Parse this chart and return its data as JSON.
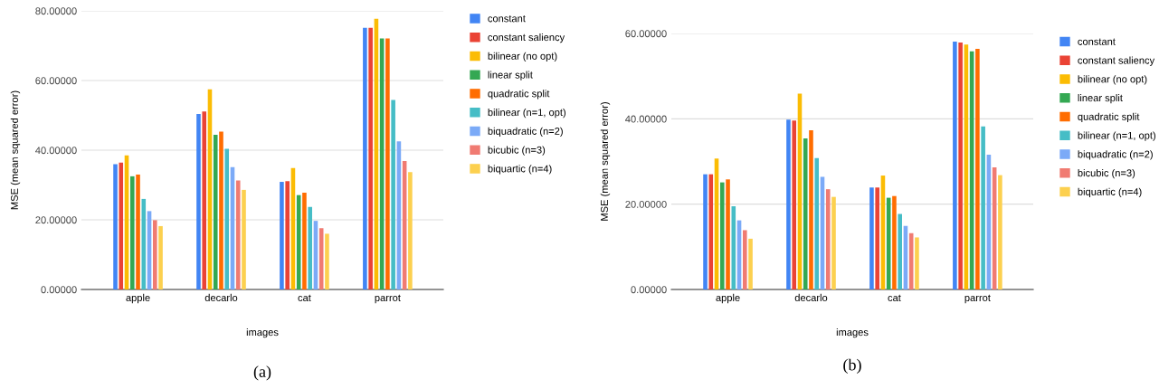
{
  "chart_data": [
    {
      "type": "bar",
      "xlabel": "images",
      "ylabel": "MSE (mean squared error)",
      "categories": [
        "apple",
        "decarlo",
        "cat",
        "parrot"
      ],
      "series": [
        {
          "name": "constant",
          "color": "#4285f4",
          "values": [
            36.0,
            50.4,
            30.9,
            75.1
          ]
        },
        {
          "name": "constant saliency",
          "color": "#ea4335",
          "values": [
            36.4,
            51.1,
            31.1,
            75.1
          ]
        },
        {
          "name": "bilinear (no opt)",
          "color": "#fbbc04",
          "values": [
            38.5,
            57.5,
            34.9,
            77.7
          ]
        },
        {
          "name": "linear split",
          "color": "#34a853",
          "values": [
            32.5,
            44.4,
            27.1,
            72.1
          ]
        },
        {
          "name": "quadratic split",
          "color": "#ff6d01",
          "values": [
            33.0,
            45.3,
            27.8,
            72.1
          ]
        },
        {
          "name": "bilinear (n=1, opt)",
          "color": "#46bdc6",
          "values": [
            26.0,
            40.4,
            23.7,
            54.4
          ]
        },
        {
          "name": "biquadratic (n=2)",
          "color": "#7baaf7",
          "values": [
            22.5,
            35.1,
            19.7,
            42.5
          ]
        },
        {
          "name": "bicubic (n=3)",
          "color": "#f07b72",
          "values": [
            19.9,
            31.3,
            17.6,
            36.9
          ]
        },
        {
          "name": "biquartic (n=4)",
          "color": "#fcd04f",
          "values": [
            18.2,
            28.6,
            16.0,
            33.7
          ]
        }
      ],
      "ylim": [
        0,
        80
      ],
      "yticks": [
        {
          "value": 0,
          "label": "0.00000"
        },
        {
          "value": 20,
          "label": "20.00000"
        },
        {
          "value": 40,
          "label": "40.00000"
        },
        {
          "value": 60,
          "label": "60.00000"
        },
        {
          "value": 80,
          "label": "80.00000"
        }
      ],
      "grid": "y",
      "legend": "right",
      "annotations": [
        "(a)"
      ]
    },
    {
      "type": "bar",
      "xlabel": "images",
      "ylabel": "MSE (mean squared error)",
      "categories": [
        "apple",
        "decarlo",
        "cat",
        "parrot"
      ],
      "series": [
        {
          "name": "constant",
          "color": "#4285f4",
          "values": [
            27.0,
            39.8,
            23.9,
            58.1
          ]
        },
        {
          "name": "constant saliency",
          "color": "#ea4335",
          "values": [
            27.0,
            39.6,
            23.9,
            57.9
          ]
        },
        {
          "name": "bilinear (no opt)",
          "color": "#fbbc04",
          "values": [
            30.7,
            45.9,
            26.7,
            57.4
          ]
        },
        {
          "name": "linear split",
          "color": "#34a853",
          "values": [
            25.1,
            35.4,
            21.5,
            55.8
          ]
        },
        {
          "name": "quadratic split",
          "color": "#ff6d01",
          "values": [
            25.8,
            37.3,
            21.9,
            56.4
          ]
        },
        {
          "name": "bilinear (n=1, opt)",
          "color": "#46bdc6",
          "values": [
            19.5,
            30.8,
            17.7,
            38.2
          ]
        },
        {
          "name": "biquadratic (n=2)",
          "color": "#7baaf7",
          "values": [
            16.2,
            26.4,
            14.9,
            31.6
          ]
        },
        {
          "name": "bicubic (n=3)",
          "color": "#f07b72",
          "values": [
            13.9,
            23.5,
            13.2,
            28.6
          ]
        },
        {
          "name": "biquartic (n=4)",
          "color": "#fcd04f",
          "values": [
            11.9,
            21.7,
            12.2,
            26.8
          ]
        }
      ],
      "ylim": [
        0,
        60
      ],
      "yticks": [
        {
          "value": 0,
          "label": "0.00000"
        },
        {
          "value": 20,
          "label": "20.00000"
        },
        {
          "value": 40,
          "label": "40.00000"
        },
        {
          "value": 60,
          "label": "60.00000"
        }
      ],
      "grid": "y",
      "legend": "right",
      "annotations": [
        "(b)"
      ]
    }
  ]
}
